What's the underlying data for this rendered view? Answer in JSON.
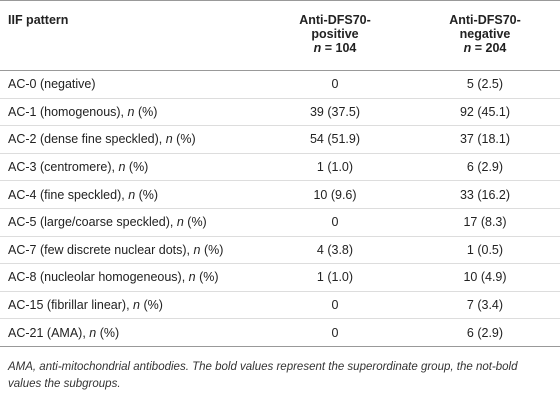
{
  "table": {
    "header": {
      "pattern": "IIF pattern",
      "columns": [
        {
          "title": "Anti-DFS70-positive",
          "n": "n",
          "count": "= 104"
        },
        {
          "title": "Anti-DFS70-negative",
          "n": "n",
          "count": "= 204"
        }
      ]
    },
    "rows": [
      {
        "label": "AC-0 (negative)",
        "positive": "0",
        "negative": "5 (2.5)"
      },
      {
        "label": "AC-1 (homogenous),",
        "n": "n",
        "pct": "(%)",
        "positive": "39 (37.5)",
        "negative": "92 (45.1)"
      },
      {
        "label": "AC-2 (dense fine speckled),",
        "n": "n",
        "pct": "(%)",
        "positive": "54 (51.9)",
        "negative": "37 (18.1)"
      },
      {
        "label": "AC-3 (centromere),",
        "n": "n",
        "pct": "(%)",
        "positive": "1 (1.0)",
        "negative": "6 (2.9)"
      },
      {
        "label": "AC-4 (fine speckled),",
        "n": "n",
        "pct": "(%)",
        "positive": "10 (9.6)",
        "negative": "33 (16.2)"
      },
      {
        "label": "AC-5 (large/coarse speckled),",
        "n": "n",
        "pct": "(%)",
        "positive": "0",
        "negative": "17 (8.3)"
      },
      {
        "label": "AC-7 (few discrete nuclear dots),",
        "n": "n",
        "pct": "(%)",
        "positive": "4 (3.8)",
        "negative": "1 (0.5)"
      },
      {
        "label": "AC-8 (nucleolar homogeneous),",
        "n": "n",
        "pct": "(%)",
        "positive": "1 (1.0)",
        "negative": "10 (4.9)"
      },
      {
        "label": "AC-15 (fibrillar linear),",
        "n": "n",
        "pct": "(%)",
        "positive": "0",
        "negative": "7 (3.4)"
      },
      {
        "label": "AC-21 (AMA),",
        "n": "n",
        "pct": "(%)",
        "positive": "0",
        "negative": "6 (2.9)"
      }
    ],
    "footnote": "AMA, anti-mitochondrial antibodies. The bold values represent the superordinate group, the not-bold values the subgroups."
  }
}
